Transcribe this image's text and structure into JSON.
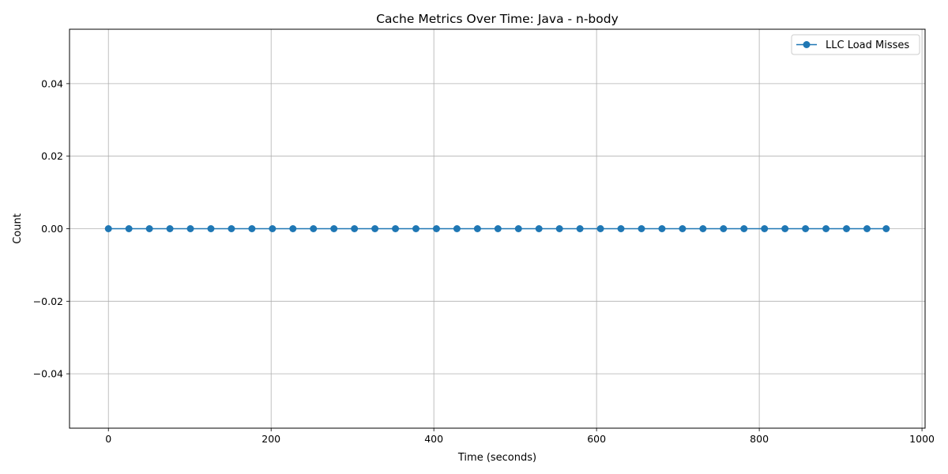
{
  "chart_data": {
    "type": "line",
    "title": "Cache Metrics Over Time: Java - n-body",
    "xlabel": "Time (seconds)",
    "ylabel": "Count",
    "xlim": [
      -47.8,
      1003.8
    ],
    "ylim": [
      -0.055,
      0.055
    ],
    "x_ticks": [
      0,
      200,
      400,
      600,
      800,
      1000
    ],
    "x_tick_labels": [
      "0",
      "200",
      "400",
      "600",
      "800",
      "1000"
    ],
    "y_ticks": [
      -0.04,
      -0.02,
      0.0,
      0.02,
      0.04
    ],
    "y_tick_labels": [
      "−0.04",
      "−0.02",
      "0.00",
      "0.02",
      "0.04"
    ],
    "grid": true,
    "legend_position": "top-right",
    "series": [
      {
        "name": "LLC Load Misses",
        "color": "#1f77b4",
        "marker": "circle",
        "x": [
          0,
          25.2,
          50.4,
          75.6,
          100.8,
          126.0,
          151.2,
          176.4,
          201.6,
          226.8,
          252.0,
          277.2,
          302.4,
          327.6,
          352.8,
          378.0,
          403.2,
          428.4,
          453.6,
          478.8,
          504.0,
          529.2,
          554.4,
          579.6,
          604.8,
          630.0,
          655.2,
          680.4,
          705.6,
          730.8,
          756.0,
          781.2,
          806.4,
          831.6,
          856.8,
          882.0,
          907.2,
          932.4,
          956.0
        ],
        "y": [
          0,
          0,
          0,
          0,
          0,
          0,
          0,
          0,
          0,
          0,
          0,
          0,
          0,
          0,
          0,
          0,
          0,
          0,
          0,
          0,
          0,
          0,
          0,
          0,
          0,
          0,
          0,
          0,
          0,
          0,
          0,
          0,
          0,
          0,
          0,
          0,
          0,
          0,
          0
        ]
      }
    ]
  }
}
